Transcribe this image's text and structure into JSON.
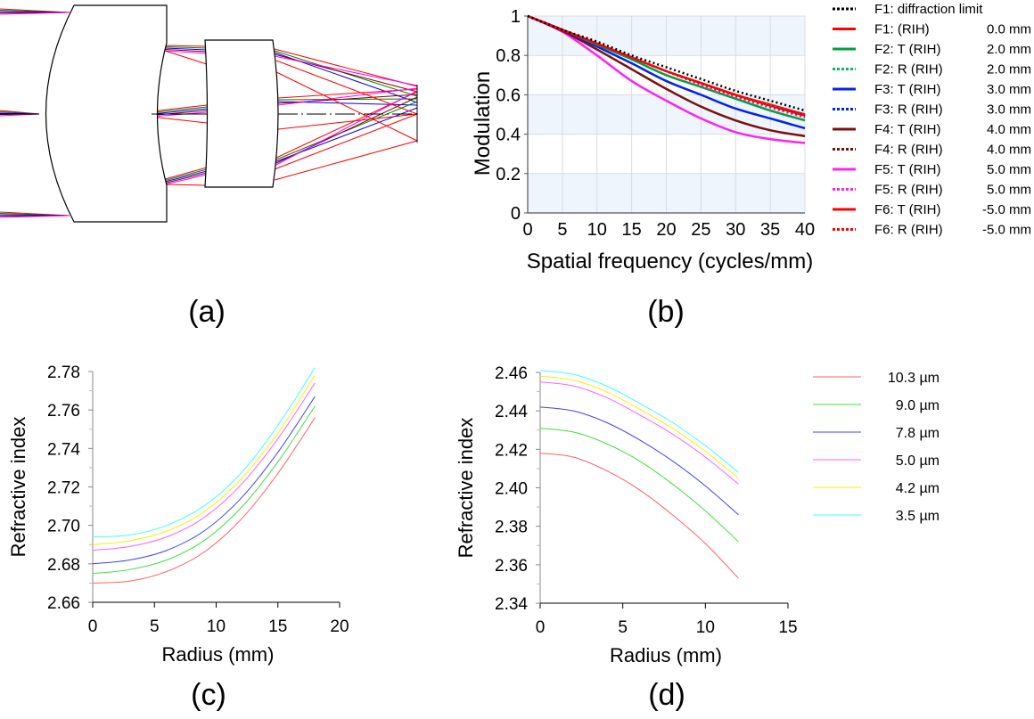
{
  "panel_labels": [
    "(a)",
    "(b)",
    "(c)",
    "(d)"
  ],
  "chart_data": [
    {
      "id": "a",
      "type": "diagram",
      "title": "Lens layout ray trace (two lenses, fields traced to image plane)",
      "ray_colors": [
        "#ff0000",
        "#008000",
        "#0000ff",
        "#800000",
        "#ff00ff"
      ]
    },
    {
      "id": "b",
      "type": "line",
      "title": "",
      "xlabel": "Spatial frequency (cycles/mm)",
      "ylabel": "Modulation",
      "xlim": [
        0,
        40
      ],
      "ylim": [
        0,
        1
      ],
      "xticks": [
        "0",
        "5",
        "10",
        "15",
        "20",
        "25",
        "30",
        "35",
        "40"
      ],
      "yticks": [
        "0",
        "0.2",
        "0.4",
        "0.6",
        "0.8",
        "1"
      ],
      "grid": true,
      "banded_background": "#eef5fc",
      "legend_position": "right",
      "x": [
        0,
        5,
        10,
        15,
        20,
        25,
        30,
        35,
        40
      ],
      "series": [
        {
          "name": "F1: diffraction limit",
          "label": "F1:  diffraction limit",
          "field": "",
          "color": "#000000",
          "style": "dotted",
          "values": [
            1.0,
            0.93,
            0.87,
            0.8,
            0.74,
            0.68,
            0.62,
            0.57,
            0.52
          ]
        },
        {
          "name": "F1: (RIH) 0.0 mm",
          "label": "F1:   (RIH)",
          "field": "0.0 mm",
          "color": "#ff0000",
          "style": "solid",
          "values": [
            1.0,
            0.93,
            0.86,
            0.79,
            0.72,
            0.66,
            0.6,
            0.55,
            0.5
          ]
        },
        {
          "name": "F2: T (RIH) 2.0 mm",
          "label": "F2: T (RIH)",
          "field": "2.0 mm",
          "color": "#00a040",
          "style": "solid",
          "values": [
            1.0,
            0.93,
            0.855,
            0.78,
            0.7,
            0.64,
            0.58,
            0.52,
            0.47
          ]
        },
        {
          "name": "F2: R (RIH) 2.0 mm",
          "label": "F2: R (RIH)",
          "field": "2.0 mm",
          "color": "#00c060",
          "style": "dotted",
          "values": [
            1.0,
            0.93,
            0.86,
            0.79,
            0.72,
            0.655,
            0.595,
            0.545,
            0.495
          ]
        },
        {
          "name": "F3: T (RIH) 3.0 mm",
          "label": "F3: T (RIH)",
          "field": "3.0 mm",
          "color": "#0022ee",
          "style": "solid",
          "values": [
            1.0,
            0.93,
            0.845,
            0.76,
            0.67,
            0.6,
            0.53,
            0.48,
            0.43
          ]
        },
        {
          "name": "F3: R (RIH) 3.0 mm",
          "label": "F3: R (RIH)",
          "field": "3.0 mm",
          "color": "#0022ee",
          "style": "dotted",
          "values": [
            1.0,
            0.93,
            0.86,
            0.79,
            0.72,
            0.655,
            0.595,
            0.54,
            0.495
          ]
        },
        {
          "name": "F4: T (RIH) 4.0 mm",
          "label": "F4: T (RIH)",
          "field": "4.0 mm",
          "color": "#7a1010",
          "style": "solid",
          "values": [
            1.0,
            0.925,
            0.83,
            0.73,
            0.63,
            0.54,
            0.47,
            0.42,
            0.39
          ]
        },
        {
          "name": "F4: R (RIH) 4.0 mm",
          "label": "F4: R (RIH)",
          "field": "4.0 mm",
          "color": "#7a1010",
          "style": "dotted",
          "values": [
            1.0,
            0.93,
            0.86,
            0.79,
            0.72,
            0.655,
            0.59,
            0.54,
            0.49
          ]
        },
        {
          "name": "F5: T (RIH) 5.0 mm",
          "label": "F5: T (RIH)",
          "field": "5.0 mm",
          "color": "#ff22ee",
          "style": "solid",
          "values": [
            1.0,
            0.92,
            0.8,
            0.67,
            0.57,
            0.48,
            0.41,
            0.375,
            0.355
          ]
        },
        {
          "name": "F5: R (RIH) 5.0 mm",
          "label": "F5: R (RIH)",
          "field": "5.0 mm",
          "color": "#ff22ee",
          "style": "dotted",
          "values": [
            1.0,
            0.93,
            0.86,
            0.79,
            0.72,
            0.65,
            0.59,
            0.535,
            0.485
          ]
        },
        {
          "name": "F6: T (RIH) -5.0 mm",
          "label": "F6: T (RIH)",
          "field": "-5.0 mm",
          "color": "#ff0000",
          "style": "solid",
          "values": [
            1.0,
            0.93,
            0.86,
            0.79,
            0.72,
            0.66,
            0.6,
            0.545,
            0.495
          ]
        },
        {
          "name": "F6: R (RIH) -5.0 mm",
          "label": "F6: R (RIH)",
          "field": "-5.0 mm",
          "color": "#ff0000",
          "style": "dotted",
          "values": [
            1.0,
            0.93,
            0.86,
            0.79,
            0.72,
            0.655,
            0.595,
            0.54,
            0.49
          ]
        }
      ]
    },
    {
      "id": "c",
      "type": "line",
      "title": "",
      "xlabel": "Radius (mm)",
      "ylabel": "Refractive index",
      "xlim": [
        0,
        20
      ],
      "ylim": [
        2.66,
        2.78
      ],
      "xticks": [
        "0",
        "5",
        "10",
        "15",
        "20"
      ],
      "yticks": [
        "2.66",
        "2.68",
        "2.70",
        "2.72",
        "2.74",
        "2.76",
        "2.78"
      ],
      "grid": false,
      "legend_position": "none",
      "x": [
        0,
        3,
        6,
        9,
        12,
        15,
        18
      ],
      "series": [
        {
          "name": "10.3 µm",
          "color": "#ff6060",
          "values": [
            2.67,
            2.671,
            2.676,
            2.686,
            2.703,
            2.727,
            2.756
          ]
        },
        {
          "name": "9.0 µm",
          "color": "#40e040",
          "values": [
            2.675,
            2.677,
            2.682,
            2.692,
            2.709,
            2.733,
            2.762
          ]
        },
        {
          "name": "7.8 µm",
          "color": "#4040ff",
          "values": [
            2.68,
            2.682,
            2.687,
            2.697,
            2.714,
            2.738,
            2.767
          ]
        },
        {
          "name": "5.0 µm",
          "color": "#ff60ff",
          "values": [
            2.687,
            2.689,
            2.694,
            2.704,
            2.721,
            2.745,
            2.774
          ]
        },
        {
          "name": "4.2 µm",
          "color": "#ffee00",
          "values": [
            2.69,
            2.692,
            2.697,
            2.707,
            2.724,
            2.748,
            2.778
          ]
        },
        {
          "name": "3.5 µm",
          "color": "#40ffff",
          "values": [
            2.694,
            2.695,
            2.7,
            2.71,
            2.727,
            2.752,
            2.782
          ]
        }
      ]
    },
    {
      "id": "d",
      "type": "line",
      "title": "",
      "xlabel": "Radius (mm)",
      "ylabel": "Refractive index",
      "xlim": [
        0,
        15
      ],
      "ylim": [
        2.34,
        2.46
      ],
      "xticks": [
        "0",
        "5",
        "10",
        "15"
      ],
      "yticks": [
        "2.34",
        "2.36",
        "2.38",
        "2.40",
        "2.42",
        "2.44",
        "2.46"
      ],
      "grid": false,
      "legend_position": "right",
      "x": [
        0,
        2,
        4,
        6,
        8,
        10,
        12
      ],
      "series": [
        {
          "name": "10.3 µm",
          "label": "10.3 µm",
          "color": "#ff6060",
          "values": [
            2.418,
            2.416,
            2.409,
            2.399,
            2.386,
            2.371,
            2.353
          ]
        },
        {
          "name": "9.0 µm",
          "label": "9.0 µm",
          "color": "#40e040",
          "values": [
            2.431,
            2.429,
            2.423,
            2.414,
            2.402,
            2.388,
            2.372
          ]
        },
        {
          "name": "7.8 µm",
          "label": "7.8 µm",
          "color": "#4040ff",
          "values": [
            2.442,
            2.44,
            2.434,
            2.425,
            2.414,
            2.401,
            2.386
          ]
        },
        {
          "name": "5.0 µm",
          "label": "5.0 µm",
          "color": "#ff60ff",
          "values": [
            2.455,
            2.453,
            2.447,
            2.438,
            2.428,
            2.416,
            2.402
          ]
        },
        {
          "name": "4.2 µm",
          "label": "4.2 µm",
          "color": "#ffee00",
          "values": [
            2.458,
            2.456,
            2.45,
            2.441,
            2.431,
            2.419,
            2.405
          ]
        },
        {
          "name": "3.5 µm",
          "label": "3.5 µm",
          "color": "#40ffff",
          "values": [
            2.461,
            2.459,
            2.453,
            2.444,
            2.434,
            2.422,
            2.408
          ]
        }
      ]
    }
  ]
}
